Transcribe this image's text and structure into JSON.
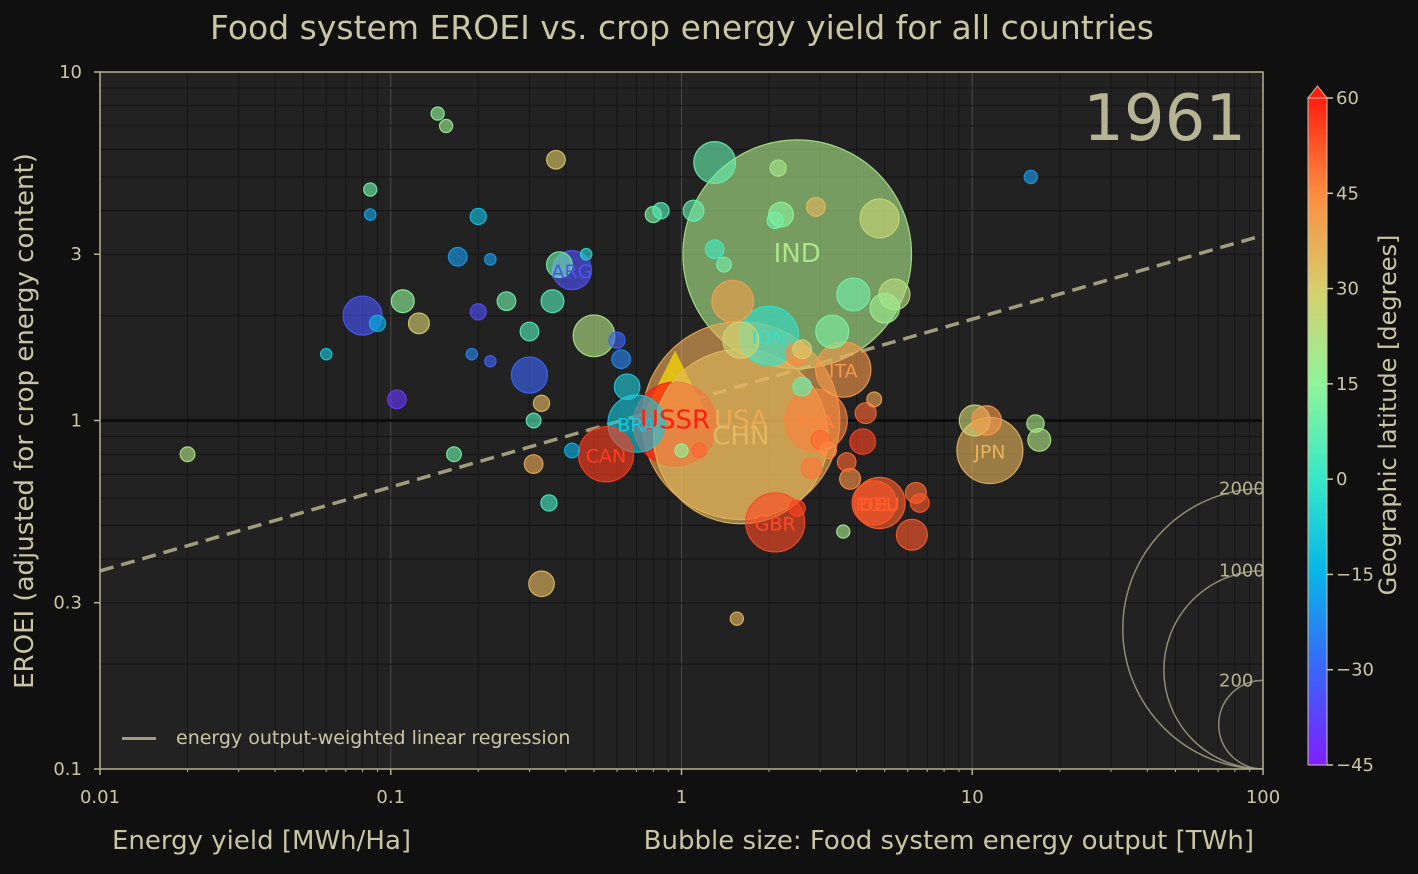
{
  "title": "Food system EROEI vs. crop energy yield for all countries",
  "xlabel": "Energy yield [MWh/Ha]",
  "ylabel": "EROEI (adjusted for crop energy content)",
  "bubble_size_label": "Bubble size: Food system energy output [TWh]",
  "colorbar_label": "Geographic latitude [degrees]",
  "year": "1961",
  "legend_label": "energy output-weighted linear regression",
  "colors": {
    "background": "#101010",
    "plot_bg": "#222222",
    "text": "#c9c6a4",
    "regression": "#a09d7d"
  },
  "chart_data": {
    "type": "scatter",
    "title": "Food system EROEI vs. crop energy yield for all countries",
    "xlabel": "Energy yield [MWh/Ha]",
    "ylabel": "EROEI (adjusted for crop energy content)",
    "x_scale": "log",
    "y_scale": "log",
    "xlim": [
      0.01,
      100
    ],
    "ylim": [
      0.1,
      10
    ],
    "x_ticks": [
      "0.01",
      "0.1",
      "1",
      "10",
      "100"
    ],
    "y_ticks": [
      "0.1",
      "0.3",
      "1",
      "3",
      "10"
    ],
    "grid": true,
    "reference_line_y": 1,
    "regression": {
      "label": "energy output-weighted linear regression",
      "points": [
        [
          0.01,
          0.37
        ],
        [
          100,
          3.4
        ]
      ]
    },
    "colorbar": {
      "label": "Geographic latitude [degrees]",
      "min": -45,
      "max": 60,
      "ticks": [
        -45,
        -30,
        -15,
        0,
        15,
        30,
        45,
        60
      ],
      "extend": "max"
    },
    "size_legend": {
      "label": "Bubble size: Food system energy output [TWh]",
      "values": [
        2000,
        1000,
        200
      ]
    },
    "legend_position": "lower-left",
    "labeled_points": [
      {
        "label": "IND",
        "x": 2.5,
        "y": 3.0,
        "lat": 21,
        "size": 1200
      },
      {
        "label": "USA",
        "x": 1.6,
        "y": 1.0,
        "lat": 38,
        "size": 900
      },
      {
        "label": "CHN",
        "x": 1.6,
        "y": 0.9,
        "lat": 35,
        "size": 700
      },
      {
        "label": "USSR",
        "x": 0.95,
        "y": 1.0,
        "lat": 60,
        "size": 800,
        "marker": "triangle"
      },
      {
        "label": "IDN",
        "x": 2.0,
        "y": 1.75,
        "lat": -2,
        "size": 80
      },
      {
        "label": "ITA",
        "x": 3.6,
        "y": 1.4,
        "lat": 42,
        "size": 70
      },
      {
        "label": "FRA",
        "x": 2.9,
        "y": 1.0,
        "lat": 46,
        "size": 90
      },
      {
        "label": "JPN",
        "x": 11.5,
        "y": 0.82,
        "lat": 36,
        "size": 100
      },
      {
        "label": "GBR",
        "x": 2.1,
        "y": 0.51,
        "lat": 54,
        "size": 80
      },
      {
        "label": "DEU",
        "x": 4.8,
        "y": 0.58,
        "lat": 51,
        "size": 60
      },
      {
        "label": "POL",
        "x": 4.6,
        "y": 0.58,
        "lat": 52,
        "size": 45
      },
      {
        "label": "BRA",
        "x": 0.7,
        "y": 0.98,
        "lat": -10,
        "size": 75
      },
      {
        "label": "CAN",
        "x": 0.55,
        "y": 0.8,
        "lat": 56,
        "size": 70
      },
      {
        "label": "ARG",
        "x": 0.42,
        "y": 2.7,
        "lat": -34,
        "size": 35
      }
    ],
    "other_points": [
      [
        0.08,
        2.0,
        -33,
        35
      ],
      [
        0.3,
        1.35,
        -30,
        30
      ],
      [
        0.5,
        1.75,
        22,
        40
      ],
      [
        1.3,
        5.5,
        8,
        40
      ],
      [
        0.37,
        5.6,
        32,
        8
      ],
      [
        1.5,
        2.2,
        40,
        40
      ],
      [
        1.6,
        1.7,
        28,
        30
      ],
      [
        4.8,
        3.8,
        27,
        35
      ],
      [
        3.9,
        2.3,
        10,
        25
      ],
      [
        3.3,
        1.8,
        12,
        25
      ],
      [
        5.4,
        2.3,
        24,
        22
      ],
      [
        5.0,
        2.1,
        18,
        20
      ],
      [
        10.2,
        1.0,
        28,
        22
      ],
      [
        11.2,
        1.0,
        42,
        20
      ],
      [
        17,
        0.88,
        22,
        12
      ],
      [
        16.5,
        0.98,
        21,
        7
      ],
      [
        0.33,
        0.34,
        35,
        15
      ],
      [
        0.31,
        0.75,
        38,
        8
      ],
      [
        6.2,
        0.47,
        52,
        22
      ],
      [
        4.3,
        1.05,
        50,
        10
      ],
      [
        4.2,
        0.87,
        55,
        15
      ],
      [
        2.8,
        0.73,
        48,
        10
      ],
      [
        3.7,
        0.76,
        50,
        8
      ],
      [
        3.8,
        0.68,
        44,
        10
      ],
      [
        2.5,
        0.56,
        55,
        6
      ],
      [
        6.6,
        0.58,
        52,
        8
      ],
      [
        6.4,
        0.62,
        50,
        10
      ],
      [
        2.5,
        1.55,
        45,
        12
      ],
      [
        2.6,
        1.25,
        8,
        8
      ],
      [
        0.35,
        0.58,
        2,
        6
      ],
      [
        0.65,
        1.25,
        -8,
        15
      ],
      [
        0.62,
        1.5,
        -24,
        8
      ],
      [
        0.47,
        3.0,
        -5,
        3
      ],
      [
        0.22,
        2.9,
        -20,
        3
      ],
      [
        0.38,
        2.8,
        10,
        15
      ],
      [
        0.36,
        2.2,
        5,
        12
      ],
      [
        0.3,
        1.8,
        5,
        8
      ],
      [
        0.25,
        2.2,
        10,
        8
      ],
      [
        0.11,
        2.2,
        15,
        12
      ],
      [
        0.125,
        1.9,
        30,
        10
      ],
      [
        0.09,
        1.9,
        -15,
        6
      ],
      [
        0.17,
        2.95,
        -20,
        8
      ],
      [
        0.2,
        3.85,
        -12,
        6
      ],
      [
        0.085,
        4.6,
        10,
        4
      ],
      [
        0.085,
        3.9,
        -18,
        3
      ],
      [
        0.145,
        7.6,
        15,
        4
      ],
      [
        0.155,
        7.0,
        18,
        4
      ],
      [
        0.8,
        3.9,
        12,
        6
      ],
      [
        0.85,
        4.0,
        5,
        6
      ],
      [
        1.1,
        4.0,
        8,
        10
      ],
      [
        2.2,
        3.9,
        15,
        14
      ],
      [
        2.1,
        3.75,
        10,
        6
      ],
      [
        2.15,
        5.3,
        20,
        6
      ],
      [
        2.9,
        4.1,
        35,
        8
      ],
      [
        1.3,
        3.1,
        2,
        8
      ],
      [
        1.4,
        2.8,
        10,
        5
      ],
      [
        0.02,
        0.8,
        22,
        5
      ],
      [
        0.165,
        0.8,
        10,
        5
      ],
      [
        0.42,
        0.82,
        -15,
        5
      ],
      [
        0.31,
        1.0,
        5,
        5
      ],
      [
        0.33,
        1.12,
        35,
        6
      ],
      [
        0.6,
        1.7,
        -30,
        6
      ],
      [
        0.06,
        1.55,
        -10,
        3
      ],
      [
        0.19,
        1.55,
        -24,
        3
      ],
      [
        0.22,
        1.48,
        -30,
        3
      ],
      [
        0.105,
        1.15,
        -40,
        8
      ],
      [
        0.2,
        2.05,
        -35,
        6
      ],
      [
        15.9,
        5.0,
        -20,
        4
      ],
      [
        1.55,
        0.27,
        35,
        4
      ],
      [
        3.6,
        0.48,
        20,
        4
      ],
      [
        1.0,
        0.82,
        15,
        4
      ],
      [
        1.15,
        0.82,
        50,
        5
      ],
      [
        3.0,
        0.88,
        50,
        8
      ],
      [
        3.2,
        0.82,
        45,
        6
      ],
      [
        2.6,
        1.6,
        30,
        8
      ],
      [
        4.6,
        1.15,
        40,
        5
      ]
    ]
  }
}
